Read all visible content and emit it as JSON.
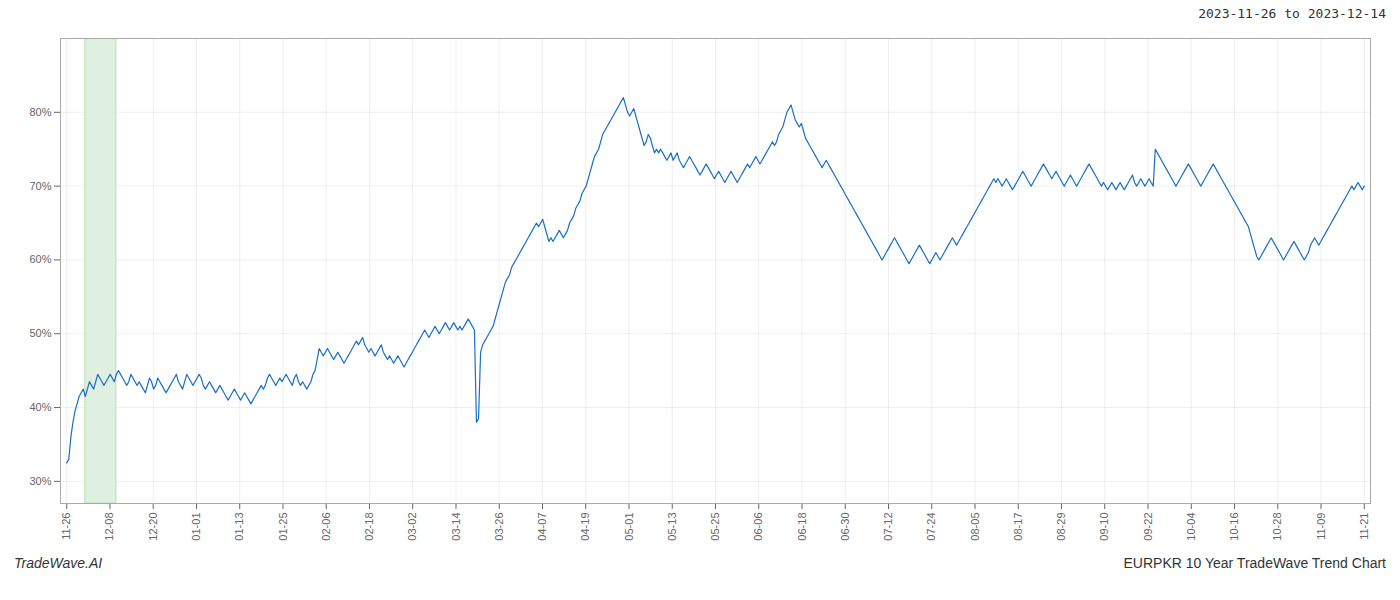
{
  "chart_data": {
    "type": "line",
    "title": "2023-11-26 to 2023-12-14",
    "annotations": [
      "TradeWave.AI",
      "EURPKR 10 Year TradeWave Trend Chart"
    ],
    "color": "#1a6fc4",
    "grid": true,
    "highlight_start": 9,
    "highlight_end": 24,
    "highlight_color": "#dff0e0",
    "highlight_edge_color": "#b8ddb8",
    "xlim": [
      -3,
      630
    ],
    "xticks": [
      {
        "value": 0,
        "label": "11-26"
      },
      {
        "value": 20.9,
        "label": "12-08"
      },
      {
        "value": 41.8,
        "label": "12-20"
      },
      {
        "value": 62.7,
        "label": "01-01"
      },
      {
        "value": 83.6,
        "label": "01-13"
      },
      {
        "value": 104.5,
        "label": "01-25"
      },
      {
        "value": 125.4,
        "label": "02-06"
      },
      {
        "value": 146.3,
        "label": "02-18"
      },
      {
        "value": 167.2,
        "label": "03-02"
      },
      {
        "value": 188.1,
        "label": "03-14"
      },
      {
        "value": 209,
        "label": "03-26"
      },
      {
        "value": 229.9,
        "label": "04-07"
      },
      {
        "value": 250.8,
        "label": "04-19"
      },
      {
        "value": 271.7,
        "label": "05-01"
      },
      {
        "value": 292.6,
        "label": "05-13"
      },
      {
        "value": 313.5,
        "label": "05-25"
      },
      {
        "value": 334.4,
        "label": "06-06"
      },
      {
        "value": 355.3,
        "label": "06-18"
      },
      {
        "value": 376.2,
        "label": "06-30"
      },
      {
        "value": 397.1,
        "label": "07-12"
      },
      {
        "value": 418,
        "label": "07-24"
      },
      {
        "value": 438.9,
        "label": "08-05"
      },
      {
        "value": 459.8,
        "label": "08-17"
      },
      {
        "value": 480.7,
        "label": "08-29"
      },
      {
        "value": 501.6,
        "label": "09-10"
      },
      {
        "value": 522.5,
        "label": "09-22"
      },
      {
        "value": 543.4,
        "label": "10-04"
      },
      {
        "value": 564.3,
        "label": "10-16"
      },
      {
        "value": 585.2,
        "label": "10-28"
      },
      {
        "value": 606.1,
        "label": "11-09"
      },
      {
        "value": 627,
        "label": "11-21"
      }
    ],
    "ylim": [
      27,
      90
    ],
    "yticks": [
      {
        "value": 30,
        "label": "30%"
      },
      {
        "value": 40,
        "label": "40%"
      },
      {
        "value": 50,
        "label": "50%"
      },
      {
        "value": 60,
        "label": "60%"
      },
      {
        "value": 70,
        "label": "70%"
      },
      {
        "value": 80,
        "label": "80%"
      }
    ],
    "values": [
      32.5,
      33.0,
      36.0,
      38.0,
      39.5,
      40.5,
      41.5,
      42.0,
      42.5,
      41.5,
      42.5,
      43.5,
      43.0,
      42.5,
      43.5,
      44.5,
      44.0,
      43.5,
      43.0,
      43.5,
      44.0,
      44.5,
      44.0,
      43.5,
      44.5,
      45.0,
      44.5,
      44.0,
      43.5,
      43.0,
      43.5,
      44.5,
      44.0,
      43.5,
      43.0,
      43.5,
      43.0,
      42.5,
      42.0,
      43.0,
      44.0,
      43.5,
      42.5,
      43.0,
      44.0,
      43.5,
      43.0,
      42.5,
      42.0,
      42.5,
      43.0,
      43.5,
      44.0,
      44.5,
      43.5,
      43.0,
      42.5,
      43.5,
      44.5,
      44.0,
      43.5,
      43.0,
      43.5,
      44.0,
      44.5,
      44.0,
      43.0,
      42.5,
      43.0,
      43.5,
      43.0,
      42.5,
      42.0,
      42.5,
      43.0,
      42.5,
      42.0,
      41.5,
      41.0,
      41.5,
      42.0,
      42.5,
      42.0,
      41.5,
      41.0,
      41.5,
      42.0,
      41.5,
      41.0,
      40.5,
      41.0,
      41.5,
      42.0,
      42.5,
      43.0,
      42.5,
      43.0,
      44.0,
      44.5,
      44.0,
      43.5,
      43.0,
      43.5,
      44.0,
      43.5,
      44.0,
      44.5,
      44.0,
      43.5,
      43.0,
      44.0,
      44.5,
      43.5,
      43.0,
      43.5,
      43.0,
      42.5,
      43.0,
      43.5,
      44.5,
      45.0,
      46.5,
      48.0,
      47.5,
      47.0,
      47.5,
      48.0,
      47.5,
      47.0,
      46.5,
      47.0,
      47.5,
      47.0,
      46.5,
      46.0,
      46.5,
      47.0,
      47.5,
      48.0,
      48.5,
      49.0,
      48.5,
      49.0,
      49.5,
      48.5,
      48.0,
      47.5,
      48.0,
      47.5,
      47.0,
      47.5,
      48.0,
      48.5,
      47.5,
      47.0,
      46.5,
      47.0,
      46.5,
      46.0,
      46.5,
      47.0,
      46.5,
      46.0,
      45.5,
      46.0,
      46.5,
      47.0,
      47.5,
      48.0,
      48.5,
      49.0,
      49.5,
      50.0,
      50.5,
      50.0,
      49.5,
      50.0,
      50.5,
      51.0,
      50.5,
      50.0,
      50.5,
      51.0,
      51.5,
      51.0,
      50.5,
      51.0,
      51.5,
      51.0,
      50.5,
      51.0,
      50.5,
      51.0,
      51.5,
      52.0,
      51.5,
      51.0,
      50.5,
      38.0,
      38.5,
      47.5,
      48.5,
      49.0,
      49.5,
      50.0,
      50.5,
      51.0,
      52.0,
      53.0,
      54.0,
      55.0,
      56.0,
      57.0,
      57.5,
      58.0,
      59.0,
      59.5,
      60.0,
      60.5,
      61.0,
      61.5,
      62.0,
      62.5,
      63.0,
      63.5,
      64.0,
      64.5,
      65.0,
      64.5,
      65.0,
      65.5,
      64.5,
      63.5,
      62.5,
      63.0,
      62.5,
      63.0,
      63.5,
      64.0,
      63.5,
      63.0,
      63.5,
      64.0,
      65.0,
      65.5,
      66.0,
      67.0,
      67.5,
      68.0,
      69.0,
      69.5,
      70.0,
      71.0,
      72.0,
      73.0,
      74.0,
      74.5,
      75.0,
      76.0,
      77.0,
      77.5,
      78.0,
      78.5,
      79.0,
      79.5,
      80.0,
      80.5,
      81.0,
      81.5,
      82.0,
      81.0,
      80.0,
      79.5,
      80.0,
      80.5,
      79.5,
      78.5,
      77.5,
      76.5,
      75.5,
      76.0,
      77.0,
      76.5,
      75.5,
      74.5,
      75.0,
      74.5,
      75.0,
      74.5,
      74.0,
      73.5,
      74.0,
      74.5,
      73.5,
      74.0,
      74.5,
      73.5,
      73.0,
      72.5,
      73.0,
      73.5,
      74.0,
      73.5,
      73.0,
      72.5,
      72.0,
      71.5,
      72.0,
      72.5,
      73.0,
      72.5,
      72.0,
      71.5,
      71.0,
      71.5,
      72.0,
      71.5,
      71.0,
      70.5,
      71.0,
      71.5,
      72.0,
      71.5,
      71.0,
      70.5,
      71.0,
      71.5,
      72.0,
      72.5,
      73.0,
      72.5,
      73.0,
      73.5,
      74.0,
      73.5,
      73.0,
      73.5,
      74.0,
      74.5,
      75.0,
      75.5,
      76.0,
      75.5,
      76.0,
      77.0,
      77.5,
      78.0,
      79.0,
      80.0,
      80.5,
      81.0,
      80.0,
      79.0,
      78.5,
      78.0,
      78.5,
      77.5,
      76.5,
      76.0,
      75.5,
      75.0,
      74.5,
      74.0,
      73.5,
      73.0,
      72.5,
      73.0,
      73.5,
      73.0,
      72.5,
      72.0,
      71.5,
      71.0,
      70.5,
      70.0,
      69.5,
      69.0,
      68.5,
      68.0,
      67.5,
      67.0,
      66.5,
      66.0,
      65.5,
      65.0,
      64.5,
      64.0,
      63.5,
      63.0,
      62.5,
      62.0,
      61.5,
      61.0,
      60.5,
      60.0,
      60.5,
      61.0,
      61.5,
      62.0,
      62.5,
      63.0,
      62.5,
      62.0,
      61.5,
      61.0,
      60.5,
      60.0,
      59.5,
      60.0,
      60.5,
      61.0,
      61.5,
      62.0,
      61.5,
      61.0,
      60.5,
      60.0,
      59.5,
      60.0,
      60.5,
      61.0,
      60.5,
      60.0,
      60.5,
      61.0,
      61.5,
      62.0,
      62.5,
      63.0,
      62.5,
      62.0,
      62.5,
      63.0,
      63.5,
      64.0,
      64.5,
      65.0,
      65.5,
      66.0,
      66.5,
      67.0,
      67.5,
      68.0,
      68.5,
      69.0,
      69.5,
      70.0,
      70.5,
      71.0,
      70.5,
      71.0,
      70.5,
      70.0,
      70.5,
      71.0,
      70.5,
      70.0,
      69.5,
      70.0,
      70.5,
      71.0,
      71.5,
      72.0,
      71.5,
      71.0,
      70.5,
      70.0,
      70.5,
      71.0,
      71.5,
      72.0,
      72.5,
      73.0,
      72.5,
      72.0,
      71.5,
      71.0,
      71.5,
      72.0,
      71.5,
      71.0,
      70.5,
      70.0,
      70.5,
      71.0,
      71.5,
      71.0,
      70.5,
      70.0,
      70.5,
      71.0,
      71.5,
      72.0,
      72.5,
      73.0,
      72.5,
      72.0,
      71.5,
      71.0,
      70.5,
      70.0,
      70.5,
      70.0,
      69.5,
      70.0,
      70.5,
      70.0,
      69.5,
      70.0,
      70.5,
      70.0,
      69.5,
      70.0,
      70.5,
      71.0,
      71.5,
      70.5,
      70.0,
      70.5,
      71.0,
      70.5,
      70.0,
      70.5,
      71.0,
      70.5,
      70.0,
      75.0,
      74.5,
      74.0,
      73.5,
      73.0,
      72.5,
      72.0,
      71.5,
      71.0,
      70.5,
      70.0,
      70.5,
      71.0,
      71.5,
      72.0,
      72.5,
      73.0,
      72.5,
      72.0,
      71.5,
      71.0,
      70.5,
      70.0,
      70.5,
      71.0,
      71.5,
      72.0,
      72.5,
      73.0,
      72.5,
      72.0,
      71.5,
      71.0,
      70.5,
      70.0,
      69.5,
      69.0,
      68.5,
      68.0,
      67.5,
      67.0,
      66.5,
      66.0,
      65.5,
      65.0,
      64.5,
      63.5,
      62.5,
      61.5,
      60.5,
      60.0,
      60.5,
      61.0,
      61.5,
      62.0,
      62.5,
      63.0,
      62.5,
      62.0,
      61.5,
      61.0,
      60.5,
      60.0,
      60.5,
      61.0,
      61.5,
      62.0,
      62.5,
      62.0,
      61.5,
      61.0,
      60.5,
      60.0,
      60.5,
      61.0,
      62.0,
      62.5,
      63.0,
      62.5,
      62.0,
      62.5,
      63.0,
      63.5,
      64.0,
      64.5,
      65.0,
      65.5,
      66.0,
      66.5,
      67.0,
      67.5,
      68.0,
      68.5,
      69.0,
      69.5,
      70.0,
      69.5,
      70.0,
      70.5,
      70.0,
      69.5,
      70.0
    ]
  }
}
